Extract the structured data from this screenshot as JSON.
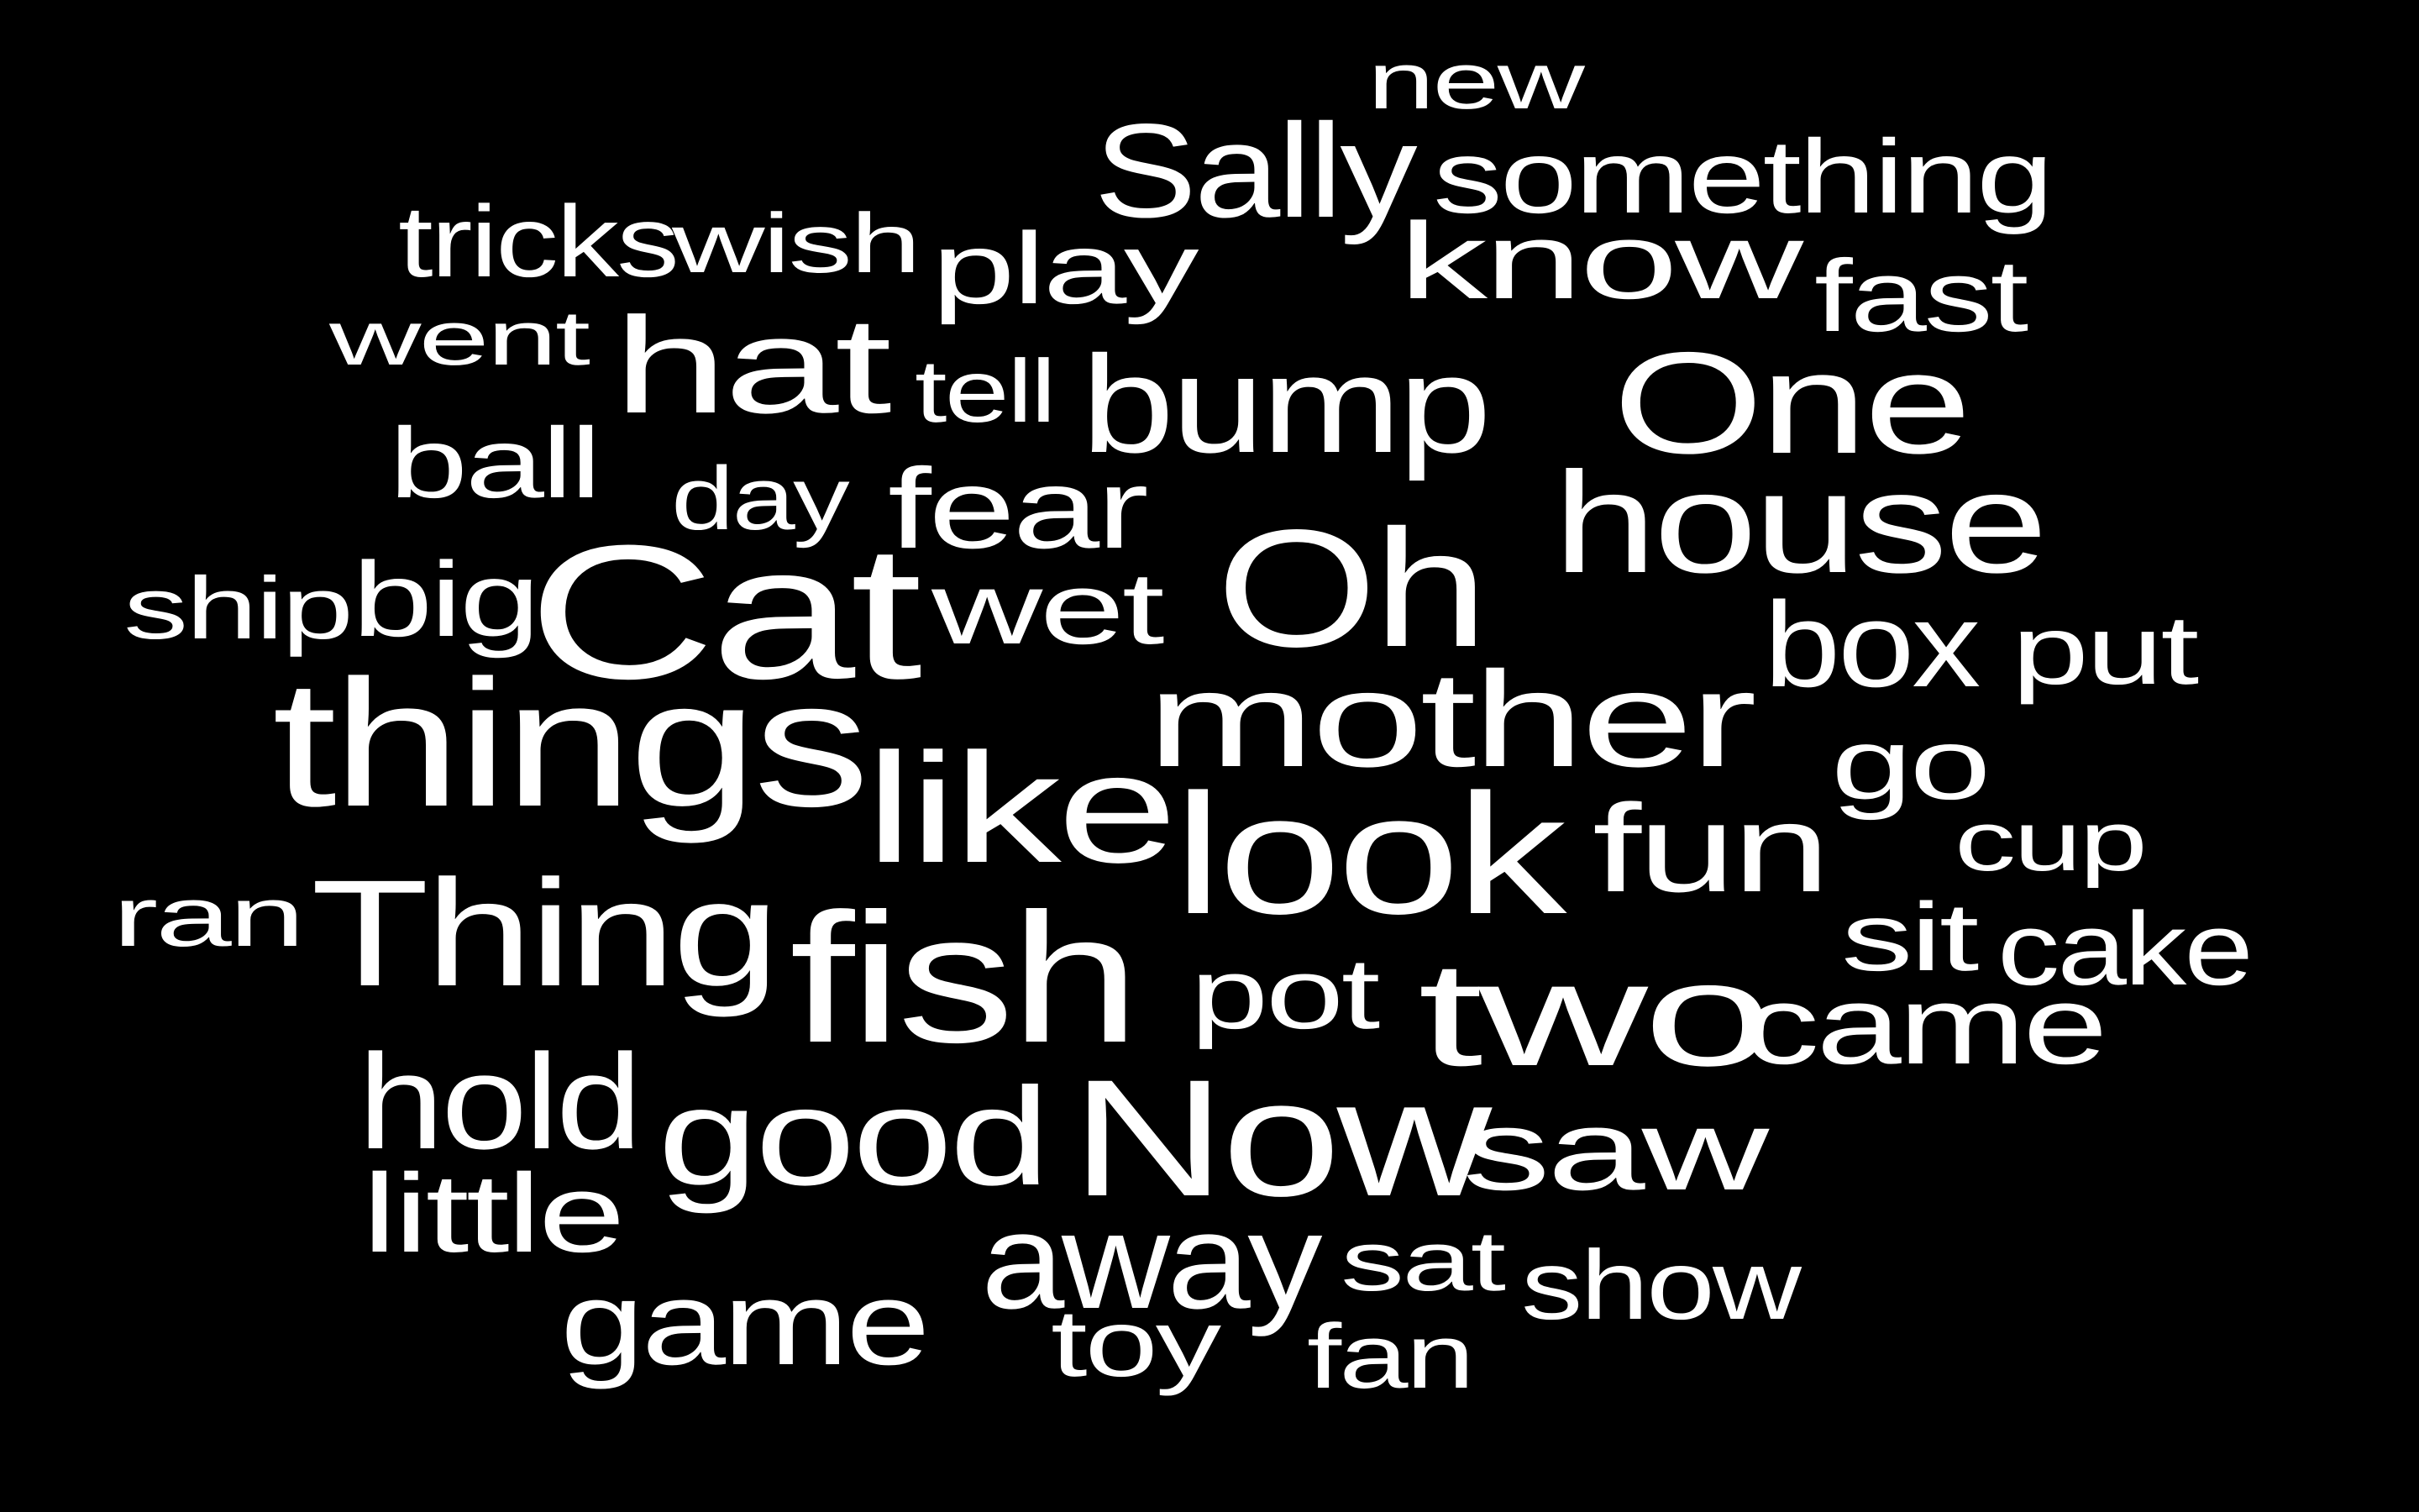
{
  "cloud": {
    "background": "#000000",
    "text_color": "#ffffff",
    "words": [
      "new",
      "Sally",
      "something",
      "tricks",
      "wish",
      "play",
      "know",
      "fast",
      "went",
      "hat",
      "tell",
      "bump",
      "One",
      "ball",
      "day",
      "fear",
      "house",
      "ship",
      "big",
      "Cat",
      "wet",
      "Oh",
      "box",
      "put",
      "things",
      "mother",
      "go",
      "like",
      "look",
      "fun",
      "cup",
      "ran",
      "Thing",
      "fish",
      "sit",
      "cake",
      "pot",
      "two",
      "came",
      "hold",
      "good",
      "Now",
      "saw",
      "little",
      "away",
      "sat",
      "show",
      "game",
      "toy",
      "fan"
    ]
  }
}
